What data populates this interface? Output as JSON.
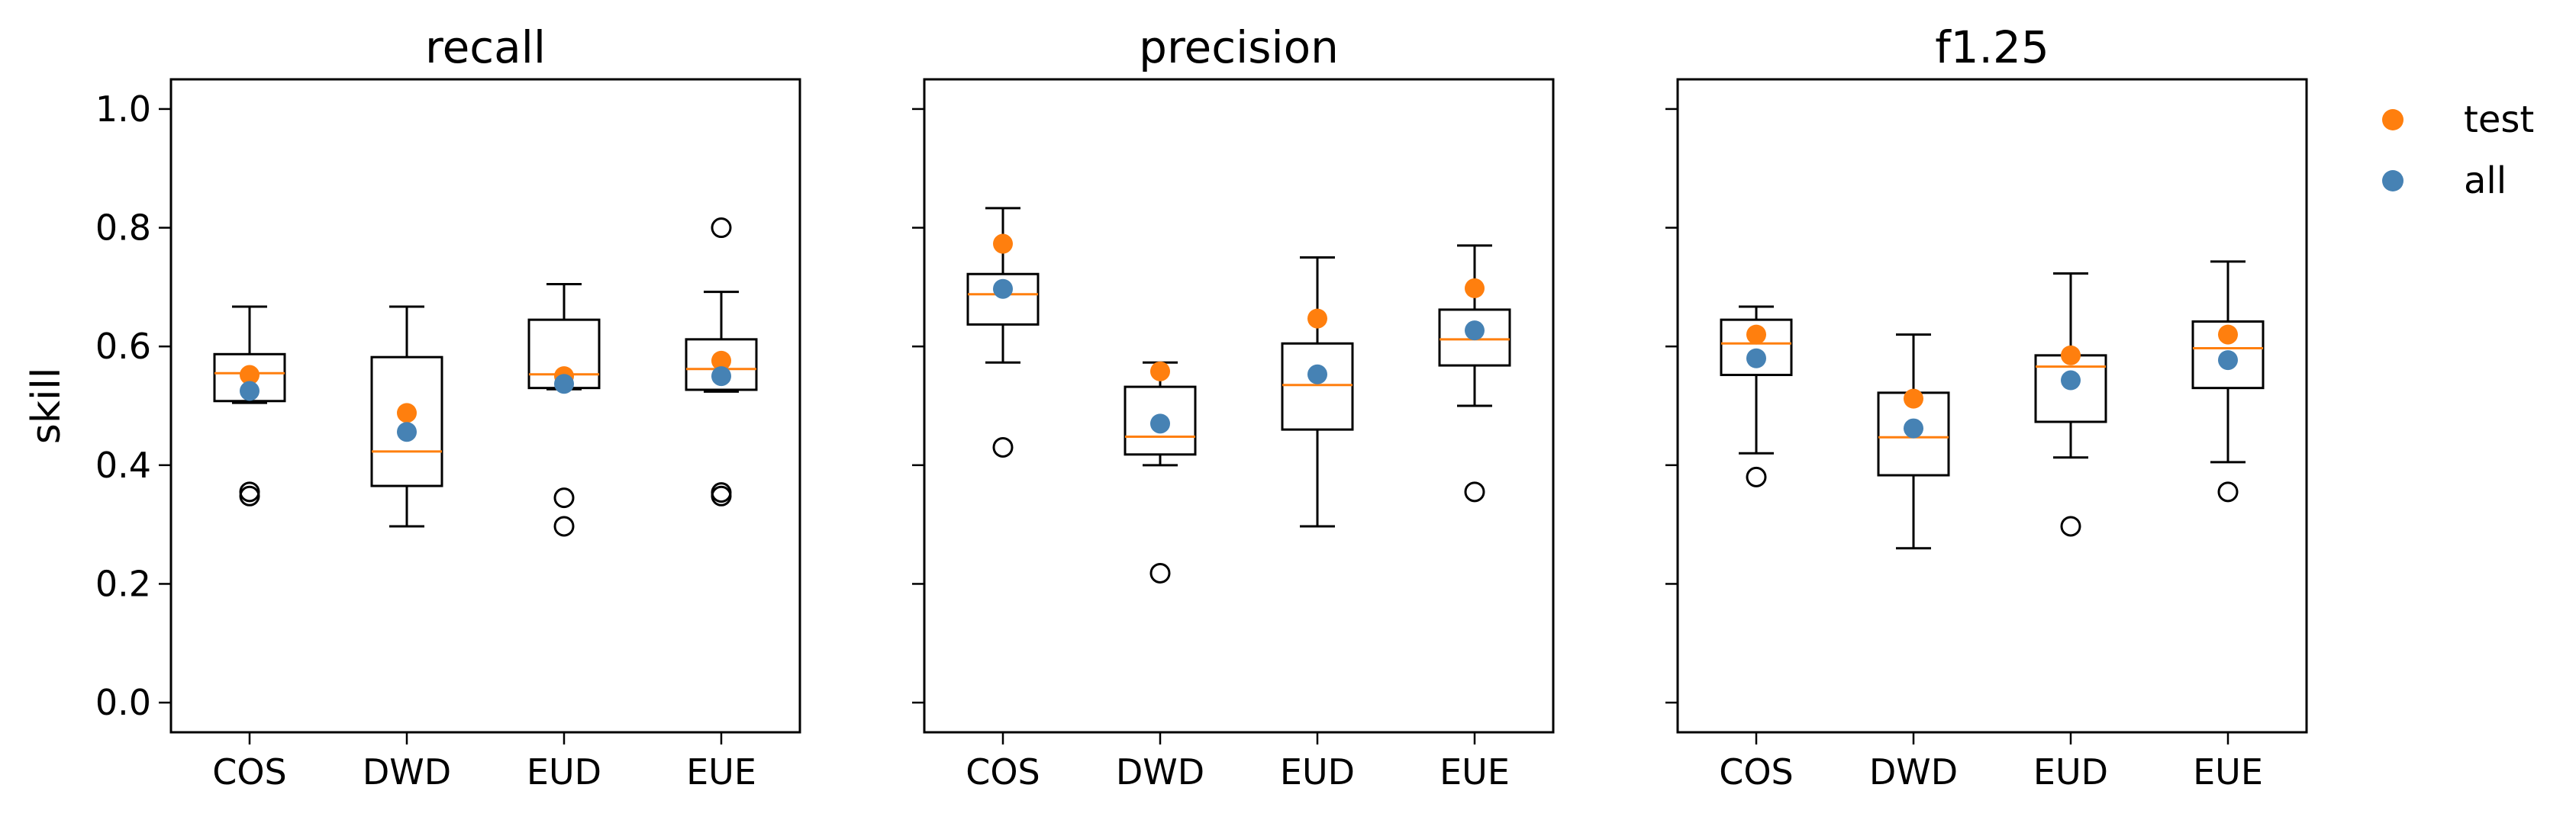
{
  "chart_data": {
    "type": "box",
    "ylabel": "skill",
    "ylim": [
      -0.05,
      1.05
    ],
    "yticks": [
      0.0,
      0.2,
      0.4,
      0.6,
      0.8,
      1.0
    ],
    "yticks_labels": [
      "0.0",
      "0.2",
      "0.4",
      "0.6",
      "0.8",
      "1.0"
    ],
    "categories": [
      "COS",
      "DWD",
      "EUD",
      "EUE"
    ],
    "legend": {
      "placement": "right",
      "entries": [
        {
          "name": "test",
          "color": "#ff7f0e"
        },
        {
          "name": "all",
          "color": "#4682b4"
        }
      ]
    },
    "colors": {
      "median": "#ff7f0e",
      "test": "#ff7f0e",
      "all": "#4682b4",
      "box": "#000000"
    },
    "panels": [
      {
        "title": "recall",
        "boxes": [
          {
            "category": "COS",
            "whisker_low": 0.505,
            "q1": 0.508,
            "median": 0.555,
            "q3": 0.587,
            "whisker_high": 0.667,
            "fliers": [
              0.348,
              0.355
            ],
            "test": 0.552,
            "all": 0.525
          },
          {
            "category": "DWD",
            "whisker_low": 0.297,
            "q1": 0.365,
            "median": 0.423,
            "q3": 0.582,
            "whisker_high": 0.667,
            "fliers": [],
            "test": 0.488,
            "all": 0.456
          },
          {
            "category": "EUD",
            "whisker_low": 0.528,
            "q1": 0.53,
            "median": 0.553,
            "q3": 0.645,
            "whisker_high": 0.705,
            "fliers": [
              0.297,
              0.345
            ],
            "test": 0.55,
            "all": 0.537
          },
          {
            "category": "EUE",
            "whisker_low": 0.524,
            "q1": 0.527,
            "median": 0.562,
            "q3": 0.612,
            "whisker_high": 0.692,
            "fliers": [
              0.348,
              0.354,
              0.8
            ],
            "test": 0.576,
            "all": 0.55
          }
        ]
      },
      {
        "title": "precision",
        "boxes": [
          {
            "category": "COS",
            "whisker_low": 0.573,
            "q1": 0.637,
            "median": 0.688,
            "q3": 0.722,
            "whisker_high": 0.833,
            "fliers": [
              0.43
            ],
            "test": 0.773,
            "all": 0.697
          },
          {
            "category": "DWD",
            "whisker_low": 0.4,
            "q1": 0.418,
            "median": 0.448,
            "q3": 0.532,
            "whisker_high": 0.573,
            "fliers": [
              0.218
            ],
            "test": 0.558,
            "all": 0.47
          },
          {
            "category": "EUD",
            "whisker_low": 0.297,
            "q1": 0.46,
            "median": 0.535,
            "q3": 0.605,
            "whisker_high": 0.75,
            "fliers": [],
            "test": 0.647,
            "all": 0.553
          },
          {
            "category": "EUE",
            "whisker_low": 0.5,
            "q1": 0.568,
            "median": 0.612,
            "q3": 0.662,
            "whisker_high": 0.77,
            "fliers": [
              0.355
            ],
            "test": 0.698,
            "all": 0.627
          }
        ]
      },
      {
        "title": "f1.25",
        "boxes": [
          {
            "category": "COS",
            "whisker_low": 0.42,
            "q1": 0.552,
            "median": 0.605,
            "q3": 0.645,
            "whisker_high": 0.667,
            "fliers": [
              0.38
            ],
            "test": 0.62,
            "all": 0.58
          },
          {
            "category": "DWD",
            "whisker_low": 0.26,
            "q1": 0.383,
            "median": 0.447,
            "q3": 0.522,
            "whisker_high": 0.62,
            "fliers": [],
            "test": 0.512,
            "all": 0.462
          },
          {
            "category": "EUD",
            "whisker_low": 0.413,
            "q1": 0.473,
            "median": 0.566,
            "q3": 0.585,
            "whisker_high": 0.723,
            "fliers": [
              0.297
            ],
            "test": 0.585,
            "all": 0.543
          },
          {
            "category": "EUE",
            "whisker_low": 0.405,
            "q1": 0.53,
            "median": 0.597,
            "q3": 0.642,
            "whisker_high": 0.743,
            "fliers": [
              0.355
            ],
            "test": 0.62,
            "all": 0.577
          }
        ]
      }
    ]
  }
}
